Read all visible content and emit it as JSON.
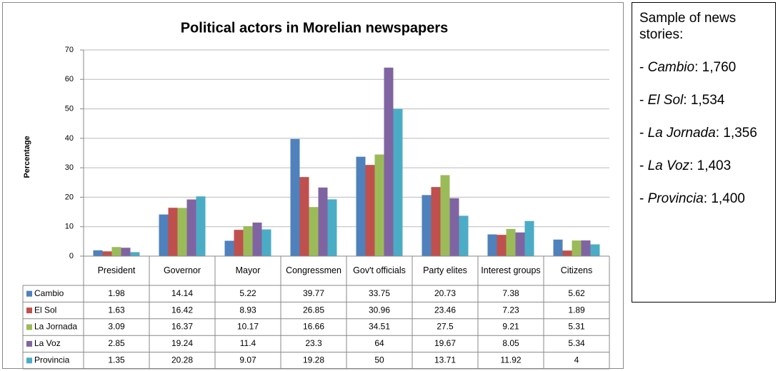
{
  "chart_data": {
    "type": "bar",
    "title": "Political actors in Morelian newspapers",
    "y_label": "Percentage",
    "categories": [
      "President",
      "Governor",
      "Mayor",
      "Congressmen",
      "Gov't officials",
      "Party elites",
      "Interest groups",
      "Citizens"
    ],
    "series": [
      {
        "name": "Cambio",
        "color": "#4f81bd",
        "values": [
          1.98,
          14.14,
          5.22,
          39.77,
          33.75,
          20.73,
          7.38,
          5.62
        ]
      },
      {
        "name": "El Sol",
        "color": "#c0504d",
        "values": [
          1.63,
          16.42,
          8.93,
          26.85,
          30.96,
          23.46,
          7.23,
          1.89
        ]
      },
      {
        "name": "La Jornada",
        "color": "#9bbb59",
        "values": [
          3.09,
          16.37,
          10.17,
          16.66,
          34.51,
          27.5,
          9.21,
          5.31
        ]
      },
      {
        "name": "La Voz",
        "color": "#8064a2",
        "values": [
          2.85,
          19.24,
          11.4,
          23.3,
          64,
          19.67,
          8.05,
          5.34
        ]
      },
      {
        "name": "Provincia",
        "color": "#4bacc6",
        "values": [
          1.35,
          20.28,
          9.07,
          19.28,
          50,
          13.71,
          11.92,
          4
        ]
      }
    ],
    "ylim": [
      0,
      70
    ],
    "yticks": [
      0,
      10,
      20,
      30,
      40,
      50,
      60,
      70
    ],
    "grid": true,
    "legend": "table"
  },
  "side_note": {
    "title": "Sample of news stories:",
    "items": [
      {
        "name": "Cambio",
        "count": "1,760"
      },
      {
        "name": "El Sol",
        "count": "1,534"
      },
      {
        "name": "La Jornada",
        "count": "1,356"
      },
      {
        "name": "La Voz",
        "count": "1,403"
      },
      {
        "name": "Provincia",
        "count": "1,400"
      }
    ]
  }
}
